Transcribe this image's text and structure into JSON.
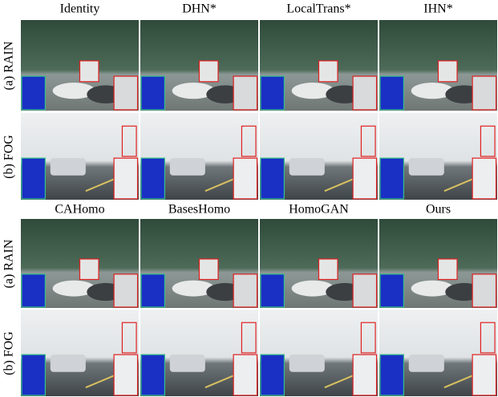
{
  "figure": {
    "blocks": [
      {
        "columns": [
          "Identity",
          "DHN*",
          "LocalTrans*",
          "IHN*"
        ],
        "rows": [
          "(a) RAIN",
          "(b) FOG"
        ]
      },
      {
        "columns": [
          "CAHomo",
          "BasesHomo",
          "HomoGAN",
          "Ours"
        ],
        "rows": [
          "(a) RAIN",
          "(b) FOG"
        ]
      }
    ]
  }
}
